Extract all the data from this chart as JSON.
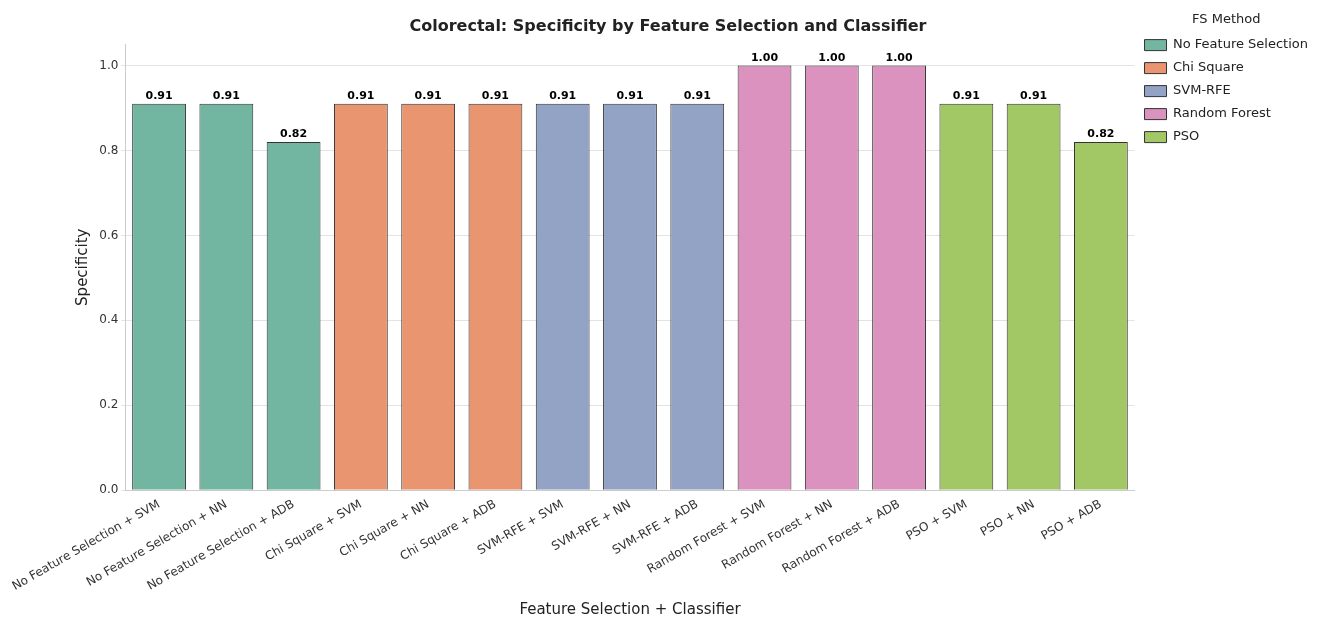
{
  "chart_data": {
    "type": "bar",
    "title": "Colorectal: Specificity by Feature Selection and Classifier",
    "xlabel": "Feature Selection + Classifier",
    "ylabel": "Specificity",
    "legend_title": "FS Method",
    "legend": "top right",
    "grid": "y",
    "categories": [
      "No Feature Selection + SVM",
      "No Feature Selection + NN",
      "No Feature Selection + ADB",
      "Chi Square + SVM",
      "Chi Square + NN",
      "Chi Square + ADB",
      "SVM-RFE + SVM",
      "SVM-RFE + NN",
      "SVM-RFE + ADB",
      "Random Forest + SVM",
      "Random Forest + NN",
      "Random Forest + ADB",
      "PSO + SVM",
      "PSO + NN",
      "PSO + ADB"
    ],
    "ylim": [
      0,
      1.05
    ],
    "yticks": [
      {
        "value": 0,
        "label": "0.0"
      },
      {
        "value": 0.2,
        "label": "0.2"
      },
      {
        "value": 0.4,
        "label": "0.4"
      },
      {
        "value": 0.6,
        "label": "0.6"
      },
      {
        "value": 0.8,
        "label": "0.8"
      },
      {
        "value": 1,
        "label": "1.0"
      }
    ],
    "series": [
      {
        "name": "No Feature Selection",
        "color": "#72b6a1",
        "values": [
          0.91,
          0.91,
          0.82,
          null,
          null,
          null,
          null,
          null,
          null,
          null,
          null,
          null,
          null,
          null,
          null
        ],
        "value_labels": [
          "0.91",
          "0.91",
          "0.82",
          null,
          null,
          null,
          null,
          null,
          null,
          null,
          null,
          null,
          null,
          null,
          null
        ]
      },
      {
        "name": "Chi Square",
        "color": "#e9956f",
        "values": [
          null,
          null,
          null,
          0.91,
          0.91,
          0.91,
          null,
          null,
          null,
          null,
          null,
          null,
          null,
          null,
          null
        ],
        "value_labels": [
          null,
          null,
          null,
          "0.91",
          "0.91",
          "0.91",
          null,
          null,
          null,
          null,
          null,
          null,
          null,
          null,
          null
        ]
      },
      {
        "name": "SVM-RFE",
        "color": "#93a3c5",
        "values": [
          null,
          null,
          null,
          null,
          null,
          null,
          0.91,
          0.91,
          0.91,
          null,
          null,
          null,
          null,
          null,
          null
        ],
        "value_labels": [
          null,
          null,
          null,
          null,
          null,
          null,
          "0.91",
          "0.91",
          "0.91",
          null,
          null,
          null,
          null,
          null,
          null
        ]
      },
      {
        "name": "Random Forest",
        "color": "#db92be",
        "values": [
          null,
          null,
          null,
          null,
          null,
          null,
          null,
          null,
          null,
          1.0,
          1.0,
          1.0,
          null,
          null,
          null
        ],
        "value_labels": [
          null,
          null,
          null,
          null,
          null,
          null,
          null,
          null,
          null,
          "1.00",
          "1.00",
          "1.00",
          null,
          null,
          null
        ]
      },
      {
        "name": "PSO",
        "color": "#a2c765",
        "values": [
          null,
          null,
          null,
          null,
          null,
          null,
          null,
          null,
          null,
          null,
          null,
          null,
          0.91,
          0.91,
          0.82
        ],
        "value_labels": [
          null,
          null,
          null,
          null,
          null,
          null,
          null,
          null,
          null,
          null,
          null,
          null,
          "0.91",
          "0.91",
          "0.82"
        ]
      }
    ]
  }
}
